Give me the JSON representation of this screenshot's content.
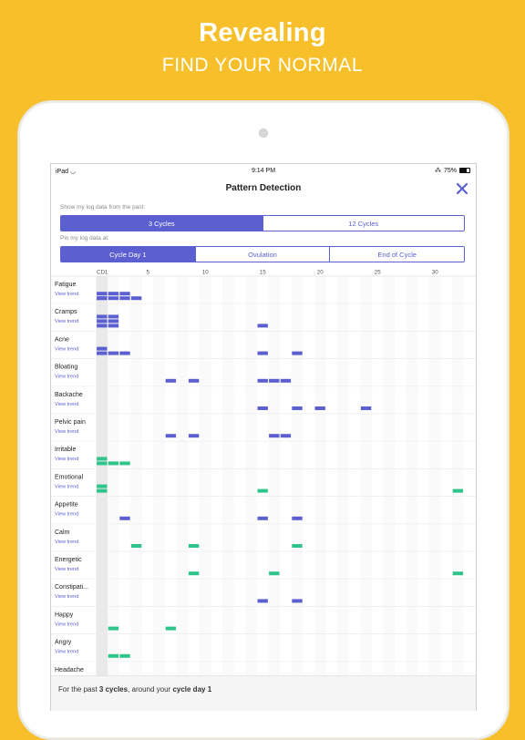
{
  "promo": {
    "title": "Revealing",
    "subtitle": "FIND YOUR NORMAL"
  },
  "status_bar": {
    "device": "iPad",
    "time": "9:14 PM",
    "battery": "75%"
  },
  "nav": {
    "title": "Pattern Detection"
  },
  "range": {
    "label": "Show my log data from the past:",
    "options": [
      "3 Cycles",
      "12 Cycles"
    ],
    "selected": 0
  },
  "pin": {
    "label": "Pin my log data at:",
    "options": [
      "Cycle Day 1",
      "Ovulation",
      "End of Cycle"
    ],
    "selected": 0
  },
  "axis": {
    "first_label": "CD1",
    "ticks": [
      5,
      10,
      15,
      20,
      25,
      30
    ],
    "days": 33
  },
  "colors": {
    "accent": "#5b5fd0",
    "positive": "#2fc48a",
    "yellow": "#F7C02B"
  },
  "view_trend_label": "View trend",
  "symptoms": [
    {
      "name": "Fatigue",
      "color": "purple",
      "marks": [
        [
          1,
          1
        ],
        [
          1,
          2
        ],
        [
          2,
          2
        ],
        [
          3,
          2
        ],
        [
          4,
          1
        ]
      ]
    },
    {
      "name": "Cramps",
      "color": "purple",
      "marks": [
        [
          1,
          3
        ],
        [
          2,
          3
        ],
        [
          15,
          1
        ]
      ]
    },
    {
      "name": "Acne",
      "color": "purple",
      "marks": [
        [
          1,
          2
        ],
        [
          2,
          1
        ],
        [
          3,
          1
        ],
        [
          15,
          1
        ],
        [
          18,
          1
        ]
      ]
    },
    {
      "name": "Bloating",
      "color": "purple",
      "marks": [
        [
          7,
          1
        ],
        [
          9,
          1
        ],
        [
          15,
          1
        ],
        [
          16,
          1
        ],
        [
          17,
          1
        ]
      ]
    },
    {
      "name": "Backache",
      "color": "purple",
      "marks": [
        [
          15,
          1
        ],
        [
          18,
          1
        ],
        [
          20,
          1
        ],
        [
          24,
          1
        ]
      ]
    },
    {
      "name": "Pelvic pain",
      "color": "purple",
      "marks": [
        [
          7,
          1
        ],
        [
          9,
          1
        ],
        [
          16,
          1
        ],
        [
          17,
          1
        ]
      ]
    },
    {
      "name": "Irritable",
      "color": "green",
      "marks": [
        [
          1,
          2
        ],
        [
          2,
          1
        ],
        [
          3,
          1
        ]
      ]
    },
    {
      "name": "Emotional",
      "color": "green",
      "marks": [
        [
          1,
          2
        ],
        [
          15,
          1
        ],
        [
          32,
          1
        ]
      ]
    },
    {
      "name": "Appetite",
      "color": "purple",
      "marks": [
        [
          3,
          1
        ],
        [
          15,
          1
        ],
        [
          18,
          1
        ]
      ]
    },
    {
      "name": "Calm",
      "color": "green",
      "marks": [
        [
          4,
          1
        ],
        [
          9,
          1
        ],
        [
          18,
          1
        ]
      ]
    },
    {
      "name": "Energetic",
      "color": "green",
      "marks": [
        [
          9,
          1
        ],
        [
          16,
          1
        ],
        [
          32,
          1
        ]
      ]
    },
    {
      "name": "Constipati...",
      "color": "purple",
      "marks": [
        [
          15,
          1
        ],
        [
          18,
          1
        ]
      ]
    },
    {
      "name": "Happy",
      "color": "green",
      "marks": [
        [
          2,
          1
        ],
        [
          7,
          1
        ]
      ]
    },
    {
      "name": "Angry",
      "color": "green",
      "marks": [
        [
          2,
          1
        ],
        [
          3,
          1
        ]
      ]
    },
    {
      "name": "Headache",
      "color": "purple",
      "marks": []
    }
  ],
  "footer": {
    "prefix": "For the past ",
    "cycles": "3 cycles",
    "middle": ", around your ",
    "day": "cycle day 1"
  }
}
